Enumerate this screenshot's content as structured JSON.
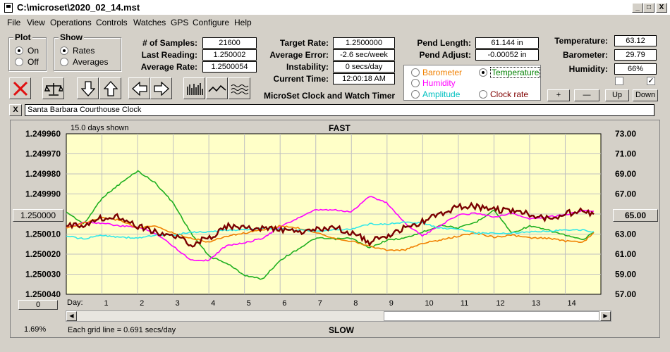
{
  "window": {
    "title": "C:\\microset\\2020_02_14.mst",
    "minimize": "_",
    "maximize": "□",
    "close": "X"
  },
  "menu": [
    "File",
    "View",
    "Operations",
    "Controls",
    "Watches",
    "GPS",
    "Configure",
    "Help"
  ],
  "plot_group": {
    "title": "Plot",
    "options": [
      "On",
      "Off"
    ],
    "selected": "On"
  },
  "show_group": {
    "title": "Show",
    "options": [
      "Rates",
      "Averages"
    ],
    "selected": "Rates"
  },
  "stats": {
    "samples_label": "# of Samples:",
    "samples": "21600",
    "last_label": "Last Reading:",
    "last": "1.250002",
    "avg_label": "Average Rate:",
    "avg": "1.2500054"
  },
  "target": {
    "rate_label": "Target Rate:",
    "rate": "1.2500000",
    "error_label": "Average Error:",
    "error": "-2.6 sec/week",
    "instability_label": "Instability:",
    "instability": "0 secs/day",
    "time_label": "Current Time:",
    "time": "12:00:18 AM",
    "app_title": "MicroSet Clock and Watch Timer"
  },
  "pend": {
    "length_label": "Pend Length:",
    "length": "61.144 in",
    "adjust_label": "Pend Adjust:",
    "adjust": "-0.00052 in"
  },
  "sensor_options": [
    {
      "label": "Barometer",
      "color": "#f08000",
      "selected": false
    },
    {
      "label": "Temperature",
      "color": "#008000",
      "selected": true
    },
    {
      "label": "Humidity",
      "color": "#ff00ff",
      "selected": false
    },
    {
      "label": "Amplitude",
      "color": "#00c0c0",
      "selected": false
    },
    {
      "label": "Clock rate",
      "color": "#800000",
      "selected": false
    }
  ],
  "env": {
    "temp_label": "Temperature:",
    "temp": "63.12",
    "baro_label": "Barometer:",
    "baro": "29.79",
    "hum_label": "Humidity:",
    "hum": "66%"
  },
  "env_checks": {
    "left": false,
    "right": true
  },
  "env_buttons": [
    "+",
    "—",
    "Up",
    "Down"
  ],
  "clock_name": "Santa Barbara Courthouse Clock",
  "clear_button": "X",
  "plot": {
    "days_shown": "15.0 days shown",
    "top_label": "FAST",
    "bottom_label": "SLOW",
    "left_center_button": "1.250000",
    "right_center_button": "65.00",
    "zero_button": "0",
    "day_label": "Day:",
    "grid_note": "Each grid line = 0.691 secs/day",
    "percent": "1.69%"
  },
  "chart_data": {
    "type": "line",
    "x_ticks": [
      "1",
      "2",
      "3",
      "4",
      "5",
      "6",
      "7",
      "8",
      "9",
      "10",
      "11",
      "12",
      "13",
      "14"
    ],
    "xlim": [
      0,
      15
    ],
    "y_left_ticks": [
      "1.249960",
      "1.249970",
      "1.249980",
      "1.249990",
      "",
      "1.250010",
      "1.250020",
      "1.250030",
      "1.250040"
    ],
    "ylim_left": [
      1.24996,
      1.25004
    ],
    "y_right_ticks": [
      "73.00",
      "71.00",
      "69.00",
      "67.00",
      "65.00",
      "63.00",
      "61.00",
      "59.00",
      "57.00"
    ],
    "ylim_right": [
      57,
      73
    ],
    "grid": true,
    "series": [
      {
        "color": "#20b020",
        "axis": "right",
        "x": [
          0,
          0.5,
          1,
          1.5,
          2,
          2.5,
          3,
          3.5,
          4,
          4.5,
          5,
          5.5,
          6,
          6.5,
          7,
          7.5,
          8,
          8.5,
          9,
          9.5,
          10,
          10.5,
          11,
          11.5,
          12,
          12.5,
          13,
          13.5,
          14,
          14.5,
          14.8
        ],
        "y": [
          65.2,
          64,
          66.6,
          68,
          69.3,
          68.1,
          66.1,
          63.1,
          60.8,
          60.1,
          58.9,
          58.5,
          60.4,
          61.5,
          62.6,
          62.5,
          62.6,
          61.6,
          62.4,
          62.6,
          63.2,
          63.9,
          63.6,
          64.2,
          65.4,
          63.1,
          63.8,
          63.4,
          62.9,
          62.4,
          63.2
        ]
      },
      {
        "color": "#ff00ff",
        "axis": "right",
        "x": [
          0,
          0.5,
          1,
          1.5,
          2,
          2.5,
          3,
          3.5,
          4,
          4.5,
          5,
          5.5,
          6,
          6.5,
          7,
          7.5,
          8,
          8.5,
          9,
          9.5,
          10,
          10.5,
          11,
          11.5,
          12,
          12.5,
          13,
          13.5,
          14,
          14.5,
          14.8
        ],
        "y": [
          63.6,
          64.2,
          64.1,
          63.8,
          63.7,
          63.1,
          61.8,
          60.4,
          60.4,
          61.9,
          62.1,
          62.6,
          63.7,
          64.6,
          65.4,
          65.4,
          65.2,
          66.8,
          66.1,
          64.1,
          62.8,
          63.9,
          64.9,
          65.1,
          64.7,
          65.1,
          64.5,
          64.7,
          64.9,
          65.4,
          65.3
        ]
      },
      {
        "color": "#f08000",
        "axis": "right",
        "x": [
          0,
          0.5,
          1,
          1.5,
          2,
          2.5,
          3,
          3.5,
          4,
          4.5,
          5,
          5.5,
          6,
          6.5,
          7,
          7.5,
          8,
          8.5,
          9,
          9.5,
          10,
          10.5,
          11,
          11.5,
          12,
          12.5,
          13,
          13.5,
          14,
          14.5,
          14.8
        ],
        "y": [
          63.6,
          64.1,
          64.6,
          64.4,
          63.6,
          63.8,
          63.1,
          62.6,
          62.2,
          62.8,
          63.1,
          63.4,
          63.8,
          63.6,
          63.2,
          62.6,
          62.3,
          61.8,
          61.4,
          61.4,
          62.1,
          62.4,
          62.8,
          63.1,
          62.7,
          62.9,
          62.6,
          62.6,
          62.3,
          62.2,
          63.1
        ]
      },
      {
        "color": "#33e8e8",
        "axis": "right",
        "x": [
          0,
          0.5,
          1,
          1.5,
          2,
          2.5,
          3,
          3.5,
          4,
          4.5,
          5,
          5.5,
          6,
          6.5,
          7,
          7.5,
          8,
          8.5,
          9,
          9.5,
          10,
          10.5,
          11,
          11.5,
          12,
          12.5,
          13,
          13.5,
          14,
          14.5,
          14.8
        ],
        "y": [
          62.8,
          62.5,
          62.9,
          62.7,
          62.6,
          62.9,
          62.9,
          63.2,
          63.2,
          63.4,
          63.4,
          63.6,
          63.5,
          63.4,
          63.3,
          63.4,
          63.5,
          64,
          64,
          64.2,
          64.1,
          63.6,
          63.5,
          63.1,
          63.1,
          63.1,
          63.2,
          63.3,
          63.4,
          63.4,
          63.2
        ]
      },
      {
        "color": "#7a0000",
        "axis": "left",
        "thick": true,
        "x": [
          0,
          0.5,
          1,
          1.5,
          2,
          2.5,
          3,
          3.5,
          4,
          4.5,
          5,
          5.5,
          6,
          6.5,
          7,
          7.5,
          8,
          8.5,
          9,
          9.5,
          10,
          10.5,
          11,
          11.5,
          12,
          12.5,
          13,
          13.5,
          14,
          14.5,
          14.8
        ],
        "y": [
          1.250006,
          1.250005,
          1.250002,
          1.250001,
          1.250006,
          1.250009,
          1.250011,
          1.250015,
          1.250012,
          1.250006,
          1.250007,
          1.250007,
          1.250008,
          1.250009,
          1.250008,
          1.250007,
          1.250009,
          1.250014,
          1.250011,
          1.250007,
          1.250004,
          1.25,
          1.249996,
          1.249996,
          1.249998,
          1.249998,
          1.25,
          1.250002,
          1.25,
          1.249998,
          1.250001
        ]
      }
    ]
  }
}
